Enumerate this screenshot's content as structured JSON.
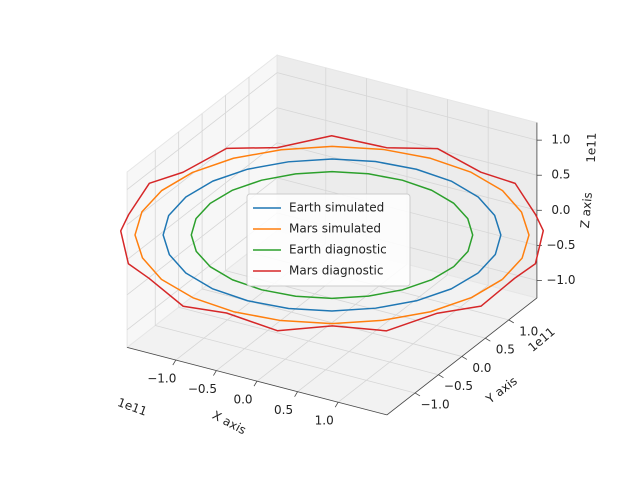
{
  "chart_data": {
    "type": "line3d",
    "xlabel": "X axis",
    "ylabel": "Y axis",
    "zlabel": "Z axis",
    "x_offset_label": "1e11",
    "y_offset_label": "1e11",
    "z_offset_label": "1e11",
    "xlim": [
      -1.6,
      1.6
    ],
    "ylim": [
      -1.6,
      1.6
    ],
    "zlim": [
      -1.25,
      1.25
    ],
    "xticks": [
      {
        "value": -1,
        "label": "−1.0"
      },
      {
        "value": -0.5,
        "label": "−0.5"
      },
      {
        "value": 0,
        "label": "0.0"
      },
      0.5,
      {
        "value": 1,
        "label": "1.0"
      }
    ],
    "yticks": [
      {
        "value": -1,
        "label": "−1.0"
      },
      {
        "value": -0.5,
        "label": "−0.5"
      },
      {
        "value": 0,
        "label": "0.0"
      },
      0.5,
      {
        "value": 1,
        "label": "1.0"
      }
    ],
    "zticks": [
      {
        "value": -1,
        "label": "−1.0"
      },
      {
        "value": -0.5,
        "label": "−0.5"
      },
      {
        "value": 0,
        "label": "0.0"
      },
      0.5,
      {
        "value": 1,
        "label": "1.0"
      }
    ],
    "grid": true,
    "legend": "center",
    "series": [
      {
        "name": "Earth simulated",
        "color": "#1f77b4",
        "x": [
          1.8,
          1.74,
          1.56,
          1.27,
          0.9,
          0.47,
          0,
          -0.47,
          -0.9,
          -1.27,
          -1.56,
          -1.74,
          -1.8,
          -1.74,
          -1.56,
          -1.27,
          -0.9,
          -0.47,
          0,
          0.47,
          0.9,
          1.27,
          1.56,
          1.74,
          1.8
        ],
        "y": [
          0,
          0.47,
          0.9,
          1.27,
          1.56,
          1.74,
          1.8,
          1.74,
          1.56,
          1.27,
          0.9,
          0.47,
          0,
          -0.47,
          -0.9,
          -1.27,
          -1.56,
          -1.74,
          -1.8,
          -1.74,
          -1.56,
          -1.27,
          -0.9,
          -0.47,
          0
        ],
        "z": [
          0,
          0,
          0,
          0,
          0,
          0,
          0,
          0,
          0,
          0,
          0,
          0,
          0,
          0,
          0,
          0,
          0,
          0,
          0,
          0,
          0,
          0,
          0,
          0,
          0
        ]
      },
      {
        "name": "Mars simulated",
        "color": "#ff7f0e",
        "x": [
          2.1,
          2.03,
          1.82,
          1.48,
          1.05,
          0.54,
          0,
          -0.54,
          -1.05,
          -1.48,
          -1.82,
          -2.03,
          -2.1,
          -2.03,
          -1.82,
          -1.48,
          -1.05,
          -0.54,
          0,
          0.54,
          1.05,
          1.48,
          1.82,
          2.03,
          2.1
        ],
        "y": [
          0,
          0.54,
          1.05,
          1.48,
          1.82,
          2.03,
          2.1,
          2.03,
          1.82,
          1.48,
          1.05,
          0.54,
          0,
          -0.54,
          -1.05,
          -1.48,
          -1.82,
          -2.03,
          -2.1,
          -2.03,
          -1.82,
          -1.48,
          -1.05,
          -0.54,
          0
        ],
        "z": [
          0,
          0,
          0,
          0,
          0,
          0,
          0,
          0,
          0,
          0,
          0,
          0,
          0,
          0,
          0,
          0,
          0,
          0,
          0,
          0,
          0,
          0,
          0,
          0,
          0
        ]
      },
      {
        "name": "Earth diagnostic",
        "color": "#2ca02c",
        "x": [
          1.5,
          1.45,
          1.3,
          1.06,
          0.75,
          0.39,
          0,
          -0.39,
          -0.75,
          -1.06,
          -1.3,
          -1.45,
          -1.5,
          -1.45,
          -1.3,
          -1.06,
          -0.75,
          -0.39,
          0,
          0.39,
          0.75,
          1.06,
          1.3,
          1.45,
          1.5
        ],
        "y": [
          0,
          0.39,
          0.75,
          1.06,
          1.3,
          1.45,
          1.5,
          1.45,
          1.3,
          1.06,
          0.75,
          0.39,
          0,
          -0.39,
          -0.75,
          -1.06,
          -1.3,
          -1.45,
          -1.5,
          -1.45,
          -1.3,
          -1.06,
          -0.75,
          -0.39,
          0
        ],
        "z": [
          0,
          0,
          0,
          0,
          0,
          0,
          0,
          0,
          0,
          0,
          0,
          0,
          0,
          0,
          0,
          0,
          0,
          0,
          0,
          0,
          0,
          0,
          0,
          0,
          0
        ]
      },
      {
        "name": "Mars diagnostic",
        "color": "#d62728",
        "x": [
          2.25,
          2.17,
          1.95,
          1.59,
          1.13,
          0.58,
          0,
          -0.58,
          -1.13,
          -1.59,
          -1.95,
          -2.17,
          -2.25,
          -2.17,
          -1.95,
          -1.59,
          -1.13,
          -0.58,
          0,
          0.58,
          1.13,
          1.59,
          1.95,
          2.17,
          2.25
        ],
        "y": [
          0,
          0.58,
          1.13,
          1.59,
          1.95,
          2.17,
          2.25,
          2.17,
          1.95,
          1.59,
          1.13,
          0.58,
          0,
          -0.58,
          -1.13,
          -1.59,
          -1.95,
          -2.17,
          -2.25,
          -2.17,
          -1.95,
          -1.59,
          -1.13,
          -0.58,
          0
        ],
        "z": [
          0.06,
          -0.06,
          0.06,
          -0.06,
          0.06,
          -0.06,
          0.06,
          -0.06,
          0.06,
          -0.06,
          0.06,
          -0.06,
          0.06,
          -0.06,
          0.06,
          -0.06,
          0.06,
          -0.06,
          0.06,
          -0.06,
          0.06,
          -0.06,
          0.06,
          -0.06,
          0.06
        ]
      }
    ]
  }
}
